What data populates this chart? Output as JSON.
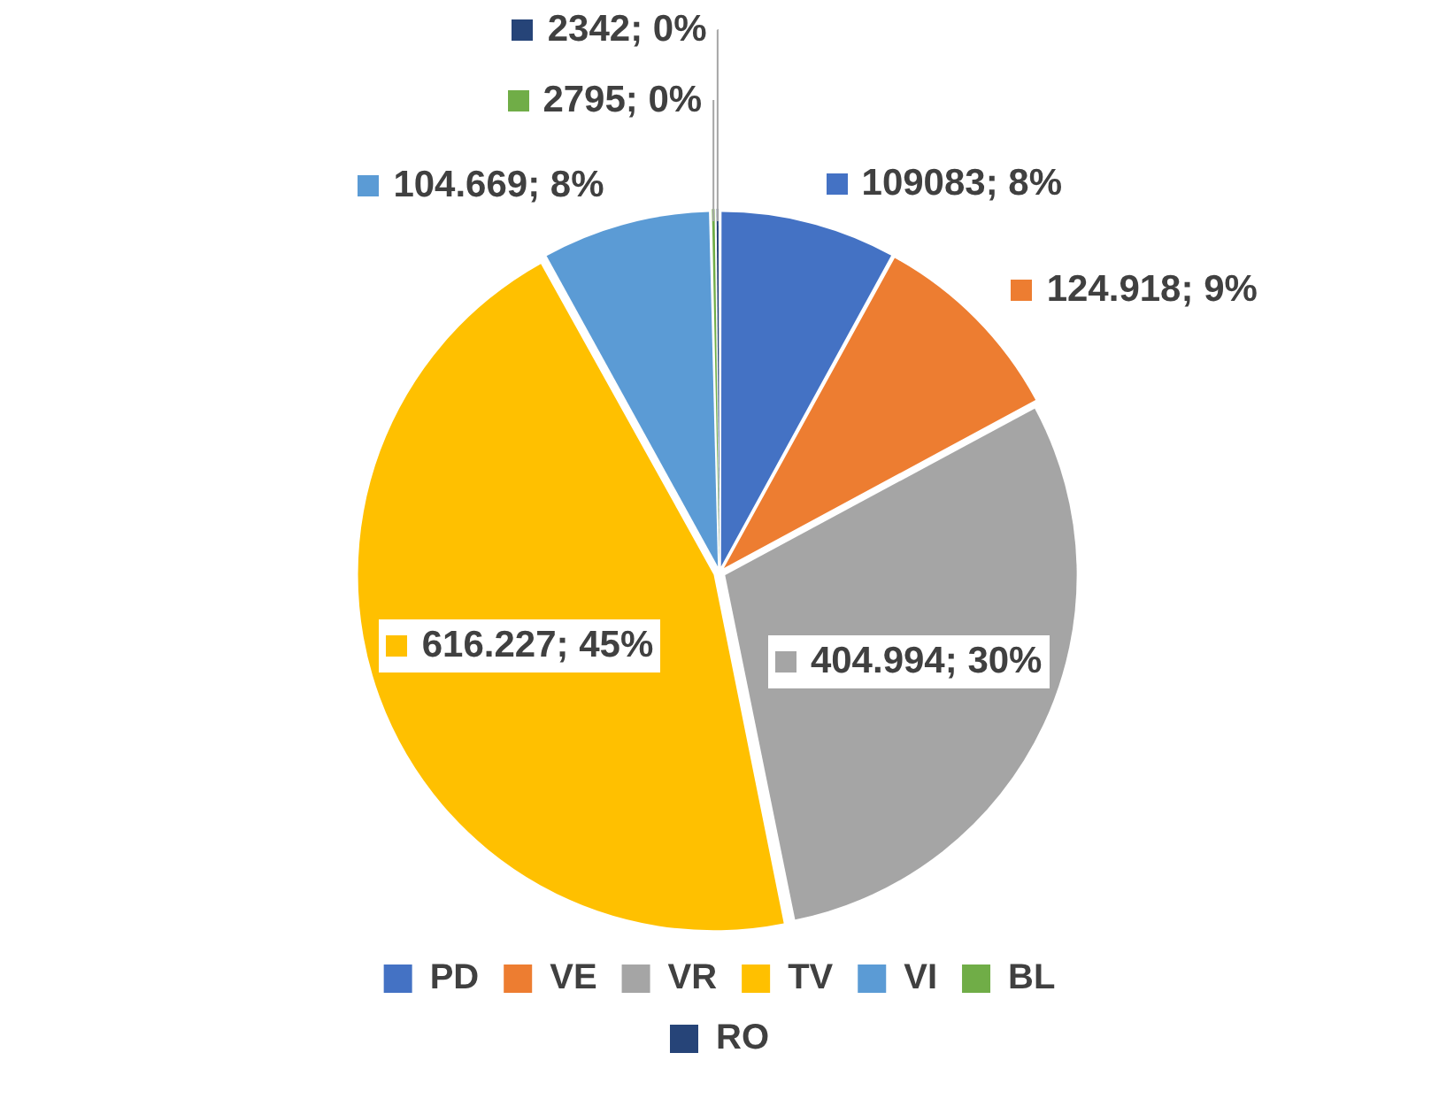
{
  "chart_data": {
    "type": "pie",
    "categories": [
      "PD",
      "VE",
      "VR",
      "TV",
      "VI",
      "BL",
      "RO"
    ],
    "values": [
      109083,
      124918,
      404994,
      616227,
      104669,
      2795,
      2342
    ],
    "colors": [
      "#4472c4",
      "#ed7d31",
      "#a5a5a5",
      "#ffc000",
      "#5b9bd5",
      "#70ad47",
      "#264478"
    ],
    "value_labels": [
      "109083; 8%",
      "124.918; 9%",
      "404.994; 30%",
      "616.227; 45%",
      "104.669; 8%",
      "2795; 0%",
      "2342; 0%"
    ],
    "legend": "bottom"
  }
}
